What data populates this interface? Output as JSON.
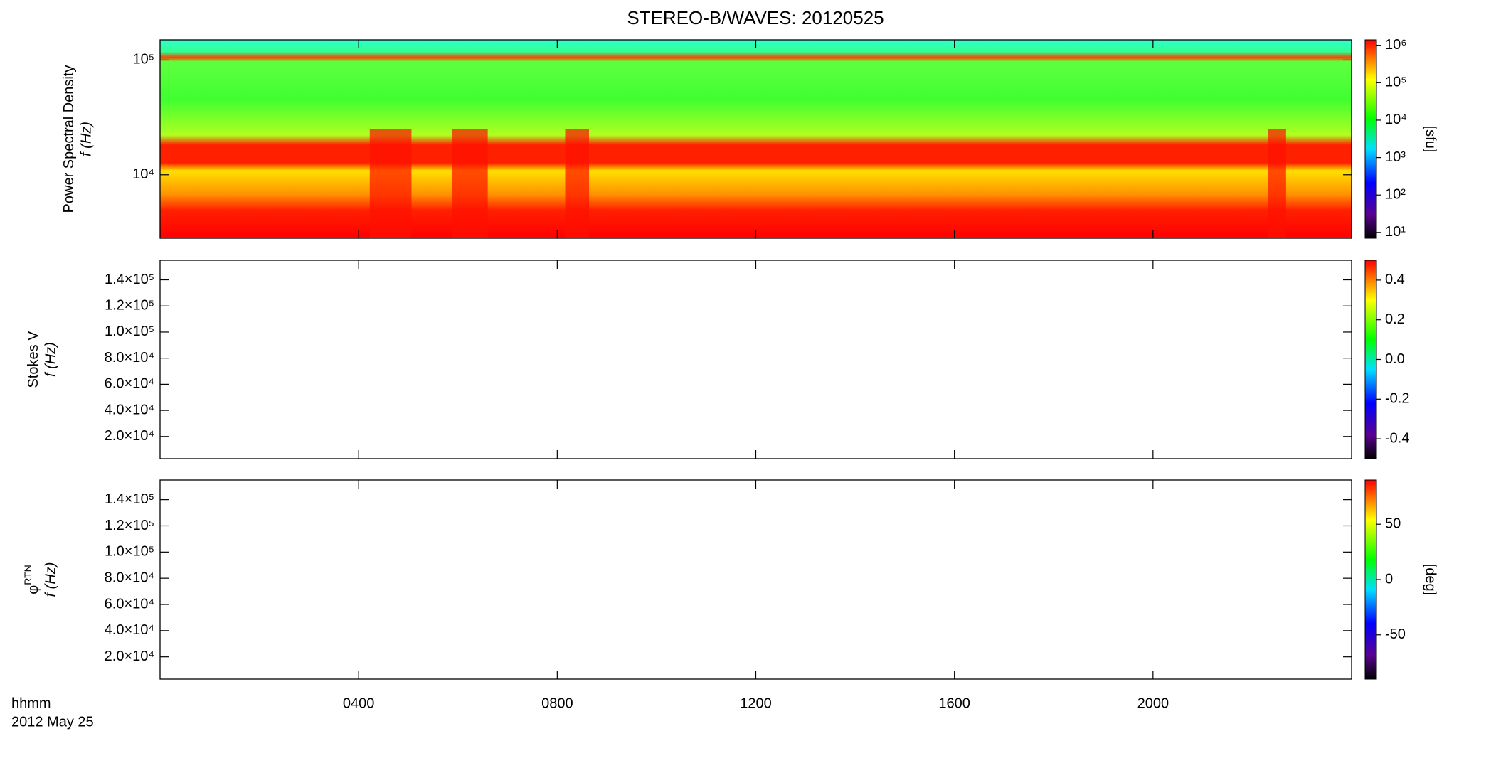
{
  "title": "STEREO-B/WAVES: 20120525",
  "x_axis": {
    "xlim": [
      0,
      24
    ],
    "xticks": [
      {
        "value": 4,
        "label": "0400"
      },
      {
        "value": 8,
        "label": "0800"
      },
      {
        "value": 12,
        "label": "1200"
      },
      {
        "value": 16,
        "label": "1600"
      },
      {
        "value": 20,
        "label": "2000"
      }
    ],
    "xlabel": "hhmm",
    "date": "2012 May 25"
  },
  "chart_data": [
    {
      "type": "spectrogram",
      "ylabel": "Power Spectral Density",
      "ylabel2": "f (Hz)",
      "log_scale": true,
      "ylim": [
        2800,
        150000
      ],
      "yticks": [
        {
          "value": 10000,
          "label": "10⁴"
        },
        {
          "value": 100000,
          "label": "10⁵"
        }
      ],
      "colorbar": {
        "label": "[sfu]",
        "log_scale": true,
        "lim": [
          7,
          1400000
        ],
        "ticks": [
          {
            "value": 10,
            "label": "10¹"
          },
          {
            "value": 100,
            "label": "10²"
          },
          {
            "value": 1000,
            "label": "10³"
          },
          {
            "value": 10000,
            "label": "10⁴"
          },
          {
            "value": 100000,
            "label": "10⁵"
          },
          {
            "value": 1000000,
            "label": "10⁶"
          }
        ]
      }
    },
    {
      "type": "spectrogram",
      "ylabel": "Stokes V",
      "ylabel2": "f (Hz)",
      "log_scale": false,
      "ylim": [
        3000,
        155000
      ],
      "yticks": [
        {
          "value": 20000,
          "label": "2.0×10⁴"
        },
        {
          "value": 40000,
          "label": "4.0×10⁴"
        },
        {
          "value": 60000,
          "label": "6.0×10⁴"
        },
        {
          "value": 80000,
          "label": "8.0×10⁴"
        },
        {
          "value": 100000,
          "label": "1.0×10⁵"
        },
        {
          "value": 120000,
          "label": "1.2×10⁵"
        },
        {
          "value": 140000,
          "label": "1.4×10⁵"
        }
      ],
      "colorbar": {
        "log_scale": false,
        "lim": [
          -0.5,
          0.5
        ],
        "ticks": [
          {
            "value": -0.4,
            "label": "-0.4"
          },
          {
            "value": -0.2,
            "label": "-0.2"
          },
          {
            "value": 0,
            "label": "0.0"
          },
          {
            "value": 0.2,
            "label": "0.2"
          },
          {
            "value": 0.4,
            "label": "0.4"
          }
        ]
      }
    },
    {
      "type": "spectrogram",
      "ylabel": "φ",
      "ylabel_sub": "RTN",
      "ylabel2": "f (Hz)",
      "log_scale": false,
      "ylim": [
        3000,
        155000
      ],
      "yticks": [
        {
          "value": 20000,
          "label": "2.0×10⁴"
        },
        {
          "value": 40000,
          "label": "4.0×10⁴"
        },
        {
          "value": 60000,
          "label": "6.0×10⁴"
        },
        {
          "value": 80000,
          "label": "8.0×10⁴"
        },
        {
          "value": 100000,
          "label": "1.0×10⁵"
        },
        {
          "value": 120000,
          "label": "1.2×10⁵"
        },
        {
          "value": 140000,
          "label": "1.4×10⁵"
        }
      ],
      "colorbar": {
        "label": "[deg]",
        "log_scale": false,
        "lim": [
          -90,
          90
        ],
        "ticks": [
          -50,
          0,
          50
        ]
      }
    }
  ]
}
